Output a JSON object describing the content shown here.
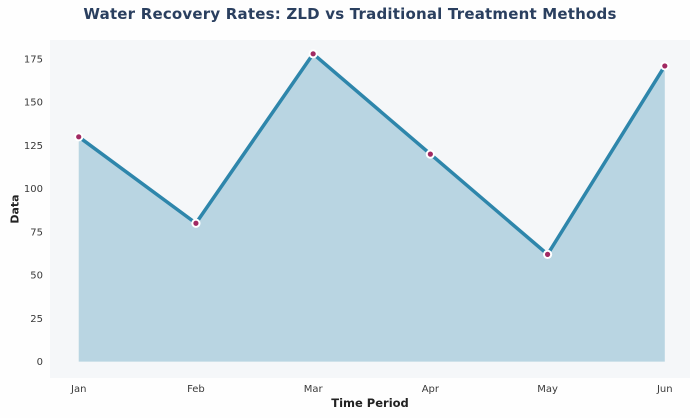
{
  "chart_data": {
    "type": "area",
    "title": "Water Recovery Rates: ZLD vs Traditional Treatment Methods",
    "xlabel": "Time Period",
    "ylabel": "Data",
    "categories": [
      "Jan",
      "Feb",
      "Mar",
      "Apr",
      "May",
      "Jun"
    ],
    "series": [
      {
        "name": "Data",
        "values": [
          130,
          80,
          178,
          120,
          62,
          171
        ]
      }
    ],
    "yticks": [
      0,
      25,
      50,
      75,
      100,
      125,
      150,
      175
    ],
    "ylim": [
      -9.5,
      186
    ],
    "xlim": [
      -0.245,
      5.215
    ],
    "grid": false,
    "legend": "none",
    "area_baseline": 0,
    "colors": {
      "title": "#2a3f5f",
      "line": "#2e86ab",
      "fill": "#b9d5e2",
      "marker": "#a12a63",
      "marker_edge": "#ffffff",
      "plot_bg": "#f5f7f9",
      "fig_bg": "#fefefe",
      "tick_text": "#3a3a3a"
    }
  }
}
